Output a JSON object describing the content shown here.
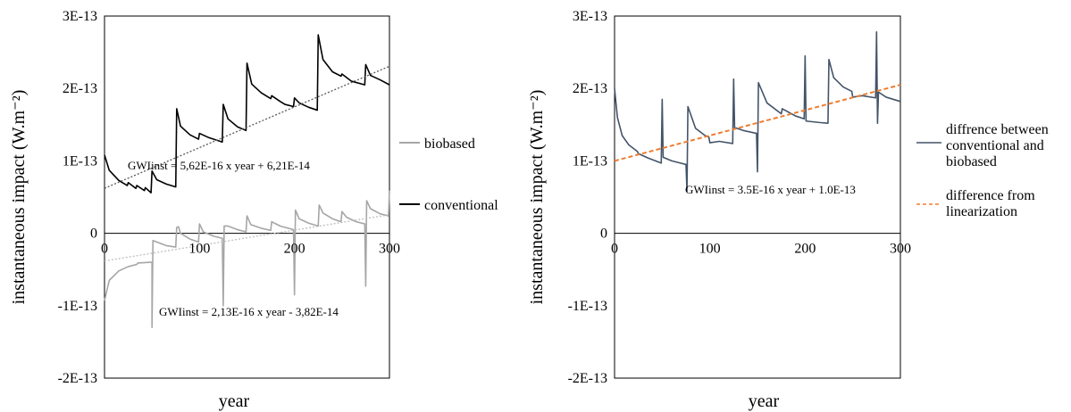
{
  "chart_data": [
    {
      "type": "line",
      "xlabel": "year",
      "ylabel": "instantaneous  impact  (W.m⁻²)",
      "xlim": [
        0,
        300
      ],
      "ylim": [
        -2e-13,
        3e-13
      ],
      "x_ticks": [
        "0",
        "100",
        "200",
        "300"
      ],
      "y_ticks": [
        "3E-13",
        "2E-13",
        "1E-13",
        "0",
        "-1E-13",
        "-2E-13"
      ],
      "grid": false,
      "legend_position": "right",
      "series": [
        {
          "name": "biobased",
          "color": "#a6a6a6",
          "points": [
            [
              0,
              -9.3e-14
            ],
            [
              5,
              -6.5e-14
            ],
            [
              15,
              -5.2e-14
            ],
            [
              25,
              -4.6e-14
            ],
            [
              34,
              -4.3e-14
            ],
            [
              35,
              -4.1e-14
            ],
            [
              49,
              -4e-14
            ],
            [
              50,
              -4e-14
            ],
            [
              50,
              -1.3e-13
            ],
            [
              51,
              -1e-14
            ],
            [
              55,
              -1.2e-14
            ],
            [
              65,
              -1.7e-14
            ],
            [
              75,
              -1.9e-14
            ],
            [
              76,
              8e-15
            ],
            [
              78,
              9e-15
            ],
            [
              80,
              0.0
            ],
            [
              90,
              -8e-15
            ],
            [
              99,
              -1.2e-14
            ],
            [
              100,
              1.3e-14
            ],
            [
              104,
              2e-15
            ],
            [
              115,
              -4e-15
            ],
            [
              124,
              -7e-15
            ],
            [
              125,
              -1e-13
            ],
            [
              126,
              1e-14
            ],
            [
              130,
              1e-14
            ],
            [
              140,
              5e-15
            ],
            [
              149,
              2e-15
            ],
            [
              150,
              2.4e-14
            ],
            [
              154,
              1.2e-14
            ],
            [
              165,
              7e-15
            ],
            [
              175,
              4e-15
            ],
            [
              176,
              1.6e-14
            ],
            [
              185,
              1e-14
            ],
            [
              199,
              5e-15
            ],
            [
              200,
              -8.5e-14
            ],
            [
              201,
              3.2e-14
            ],
            [
              205,
              2e-14
            ],
            [
              215,
              1.4e-14
            ],
            [
              225,
              1e-14
            ],
            [
              226,
              3.9e-14
            ],
            [
              230,
              2.8e-14
            ],
            [
              240,
              2e-14
            ],
            [
              249,
              1.6e-14
            ],
            [
              250,
              3e-14
            ],
            [
              255,
              2.2e-14
            ],
            [
              265,
              1.6e-14
            ],
            [
              274,
              1.3e-14
            ],
            [
              275,
              -7.3e-14
            ],
            [
              276,
              4.5e-14
            ],
            [
              280,
              3.4e-14
            ],
            [
              290,
              2.7e-14
            ],
            [
              299,
              2.4e-14
            ],
            [
              300,
              5.9e-14
            ]
          ]
        },
        {
          "name": "conventional",
          "color": "#000000",
          "points": [
            [
              0,
              1.08e-13
            ],
            [
              5,
              8.7e-14
            ],
            [
              15,
              7.3e-14
            ],
            [
              24,
              6.6e-14
            ],
            [
              25,
              7e-14
            ],
            [
              33,
              6.2e-14
            ],
            [
              34,
              6.6e-14
            ],
            [
              42,
              5.9e-14
            ],
            [
              43,
              6.3e-14
            ],
            [
              49,
              5.6e-14
            ],
            [
              50,
              8.6e-14
            ],
            [
              55,
              7.4e-14
            ],
            [
              65,
              6.8e-14
            ],
            [
              75,
              6.4e-14
            ],
            [
              76,
              1.72e-13
            ],
            [
              80,
              1.48e-13
            ],
            [
              90,
              1.36e-13
            ],
            [
              99,
              1.3e-13
            ],
            [
              100,
              1.38e-13
            ],
            [
              110,
              1.32e-13
            ],
            [
              124,
              1.26e-13
            ],
            [
              125,
              1.78e-13
            ],
            [
              130,
              1.58e-13
            ],
            [
              140,
              1.47e-13
            ],
            [
              149,
              1.42e-13
            ],
            [
              150,
              2.35e-13
            ],
            [
              155,
              2.06e-13
            ],
            [
              165,
              1.94e-13
            ],
            [
              175,
              1.86e-13
            ],
            [
              176,
              1.9e-13
            ],
            [
              185,
              1.82e-13
            ],
            [
              190,
              1.78e-13
            ],
            [
              199,
              1.75e-13
            ],
            [
              200,
              1.87e-13
            ],
            [
              205,
              1.8e-13
            ],
            [
              215,
              1.74e-13
            ],
            [
              224,
              1.7e-13
            ],
            [
              225,
              2.74e-13
            ],
            [
              230,
              2.4e-13
            ],
            [
              240,
              2.23e-13
            ],
            [
              249,
              2.17e-13
            ],
            [
              250,
              2.2e-13
            ],
            [
              260,
              2.1e-13
            ],
            [
              274,
              2.05e-13
            ],
            [
              275,
              2.33e-13
            ],
            [
              280,
              2.18e-13
            ],
            [
              290,
              2.12e-13
            ],
            [
              300,
              2.05e-13
            ]
          ]
        },
        {
          "name": "",
          "color": "#595959",
          "dashed": true,
          "trend_of": "conventional",
          "points": [
            [
              0,
              6.21e-14
            ],
            [
              300,
              2.307e-13
            ]
          ]
        },
        {
          "name": "",
          "color": "#bfbfbf",
          "dashed": true,
          "trend_of": "biobased",
          "points": [
            [
              0,
              -3.82e-14
            ],
            [
              300,
              2.57e-14
            ]
          ]
        }
      ],
      "annotations": [
        {
          "text": "GWIinst = 5,62E-16  x year + 6,21E-14",
          "x": 143,
          "y": 5.6e-14
        },
        {
          "text": "GWIinst = 2,13E-16  x year - 3,82E-14",
          "x": 145,
          "y": -1.1e-13
        }
      ]
    },
    {
      "type": "line",
      "xlabel": "year",
      "ylabel": "instantaneous  impact  (W.m⁻²)",
      "xlim": [
        0,
        300
      ],
      "ylim": [
        -2e-13,
        3e-13
      ],
      "x_ticks": [
        "0",
        "100",
        "200",
        "300"
      ],
      "y_ticks": [
        "3E-13",
        "2E-13",
        "1E-13",
        "0",
        "-1E-13",
        "-2E-13"
      ],
      "grid": false,
      "legend_position": "right",
      "series": [
        {
          "name": "diffrence between conventional and biobased",
          "color": "#44546a",
          "points": [
            [
              0,
              2e-13
            ],
            [
              3,
              1.6e-13
            ],
            [
              8,
              1.35e-13
            ],
            [
              15,
              1.22e-13
            ],
            [
              24,
              1.13e-13
            ],
            [
              25,
              1.1e-13
            ],
            [
              35,
              1.04e-13
            ],
            [
              49,
              9.7e-14
            ],
            [
              50,
              1.85e-13
            ],
            [
              51,
              1.05e-13
            ],
            [
              60,
              1e-13
            ],
            [
              75,
              9.5e-14
            ],
            [
              76,
              5.8e-14
            ],
            [
              77,
              1.75e-13
            ],
            [
              85,
              1.45e-13
            ],
            [
              95,
              1.35e-13
            ],
            [
              99,
              1.33e-13
            ],
            [
              100,
              1.25e-13
            ],
            [
              110,
              1.27e-13
            ],
            [
              124,
              1.24e-13
            ],
            [
              125,
              2.13e-13
            ],
            [
              126,
              1.46e-13
            ],
            [
              135,
              1.42e-13
            ],
            [
              149,
              1.38e-13
            ],
            [
              150,
              8.5e-14
            ],
            [
              151,
              2.08e-13
            ],
            [
              160,
              1.8e-13
            ],
            [
              175,
              1.65e-13
            ],
            [
              176,
              1.72e-13
            ],
            [
              190,
              1.62e-13
            ],
            [
              199,
              1.58e-13
            ],
            [
              200,
              2.45e-13
            ],
            [
              201,
              1.55e-13
            ],
            [
              215,
              1.53e-13
            ],
            [
              224,
              1.52e-13
            ],
            [
              225,
              2.4e-13
            ],
            [
              230,
              2.15e-13
            ],
            [
              240,
              2.02e-13
            ],
            [
              249,
              1.96e-13
            ],
            [
              250,
              1.88e-13
            ],
            [
              260,
              1.9e-13
            ],
            [
              274,
              1.87e-13
            ],
            [
              275,
              2.78e-13
            ],
            [
              276,
              1.52e-13
            ],
            [
              277,
              1.95e-13
            ],
            [
              285,
              1.88e-13
            ],
            [
              300,
              1.82e-13
            ]
          ]
        },
        {
          "name": "difference from linearization",
          "color": "#ed7d31",
          "dashed": true,
          "points": [
            [
              0,
              1e-13
            ],
            [
              300,
              2.05e-13
            ]
          ]
        }
      ],
      "annotations": [
        {
          "text": "GWIinst = 3.5E-16 x year + 1.0E-13",
          "x": 152,
          "y": 2.8e-14
        }
      ]
    }
  ]
}
